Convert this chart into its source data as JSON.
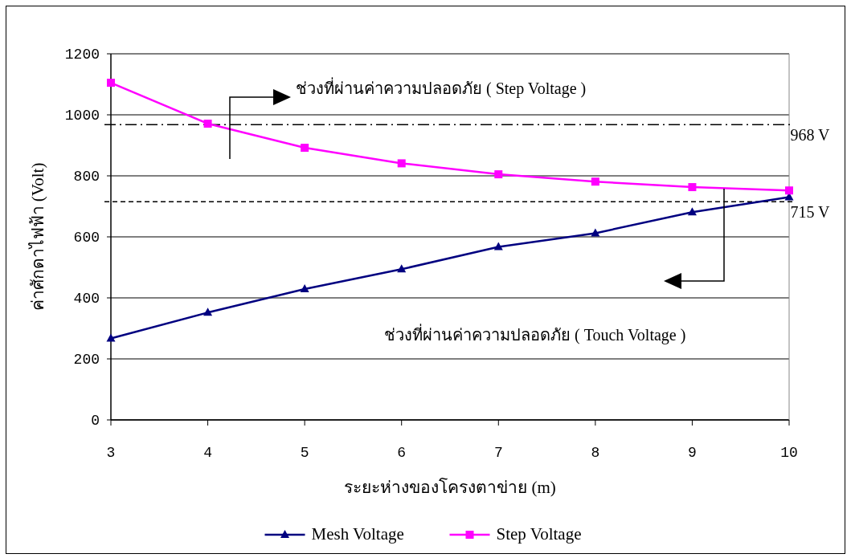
{
  "chart_data": {
    "type": "line",
    "xlabel": "ระยะห่างของโครงตาข่าย (m)",
    "ylabel": "ค่าศักดาไฟฟ้า (Volt)",
    "x": [
      3,
      4,
      5,
      6,
      7,
      8,
      9,
      10
    ],
    "series": [
      {
        "name": "Mesh Voltage",
        "color": "#000080",
        "marker": "triangle",
        "values": [
          267,
          352,
          429,
          494,
          567,
          612,
          681,
          730
        ]
      },
      {
        "name": "Step Voltage",
        "color": "#ff00ff",
        "marker": "square",
        "values": [
          1105,
          971,
          892,
          841,
          805,
          781,
          763,
          752
        ]
      }
    ],
    "xlim": [
      3,
      10
    ],
    "xticks": [
      3,
      4,
      5,
      6,
      7,
      8,
      9,
      10
    ],
    "ylim": [
      0,
      1200
    ],
    "yticks": [
      0,
      200,
      400,
      600,
      800,
      1000,
      1200
    ],
    "ref_lines": [
      {
        "axis": "y",
        "value": 968,
        "label": "968 V",
        "line_style": "dashdot",
        "color": "#000000"
      },
      {
        "axis": "y",
        "value": 715,
        "label": "715 V",
        "line_style": "dashed",
        "color": "#000000"
      }
    ],
    "annotations": [
      "ช่วงที่ผ่านค่าความปลอดภัย ( Step Voltage )",
      "ช่วงที่ผ่านค่าความปลอดภัย ( Touch Voltage )"
    ],
    "grid": "y",
    "legend": "bottom"
  }
}
